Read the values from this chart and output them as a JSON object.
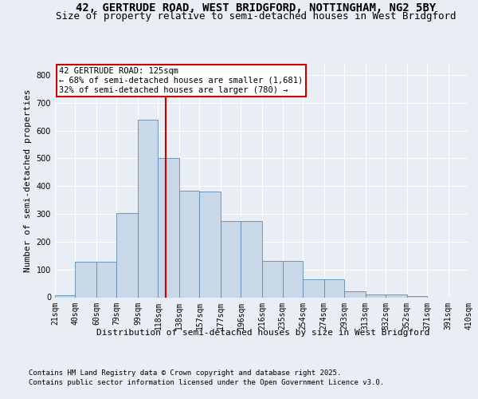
{
  "title_line1": "42, GERTRUDE ROAD, WEST BRIDGFORD, NOTTINGHAM, NG2 5BY",
  "title_line2": "Size of property relative to semi-detached houses in West Bridgford",
  "xlabel": "Distribution of semi-detached houses by size in West Bridgford",
  "ylabel": "Number of semi-detached properties",
  "footer_line1": "Contains HM Land Registry data © Crown copyright and database right 2025.",
  "footer_line2": "Contains public sector information licensed under the Open Government Licence v3.0.",
  "annotation_title": "42 GERTRUDE ROAD: 125sqm",
  "annotation_line2": "← 68% of semi-detached houses are smaller (1,681)",
  "annotation_line3": "32% of semi-detached houses are larger (780) →",
  "bin_edges": [
    21,
    40,
    60,
    79,
    99,
    118,
    138,
    157,
    177,
    196,
    216,
    235,
    254,
    274,
    293,
    313,
    332,
    352,
    371,
    391,
    410
  ],
  "bar_heights": [
    7,
    128,
    128,
    302,
    638,
    500,
    383,
    380,
    275,
    275,
    130,
    130,
    65,
    65,
    22,
    10,
    10,
    5,
    0,
    0
  ],
  "bar_color": "#c8d8e8",
  "bar_edge_color": "#5a8ab0",
  "vline_color": "#cc0000",
  "vline_x": 125,
  "annotation_box_color": "#cc0000",
  "bg_color": "#e8eef4",
  "plot_bg_color": "#e8eef4",
  "ylim": [
    0,
    840
  ],
  "yticks": [
    0,
    100,
    200,
    300,
    400,
    500,
    600,
    700,
    800
  ],
  "grid_color": "#ffffff",
  "title_fontsize": 10,
  "subtitle_fontsize": 9,
  "axis_label_fontsize": 8,
  "tick_fontsize": 7,
  "annotation_fontsize": 7.5,
  "footer_fontsize": 6.5
}
